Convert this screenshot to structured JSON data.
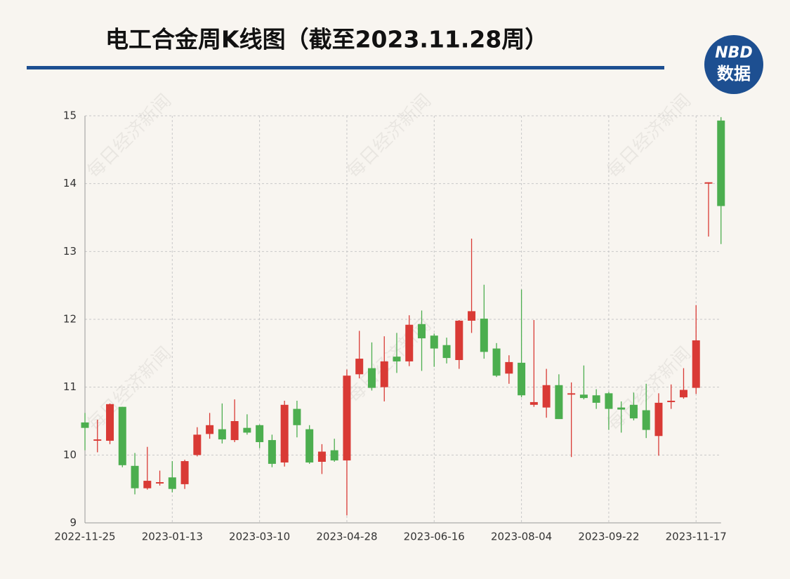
{
  "chart_data": {
    "type": "candlestick",
    "title": "电工合金周K线图（截至2023.11.28周）",
    "logo": {
      "top": "NBD",
      "bottom": "数据"
    },
    "watermark": "每日经济新闻",
    "categories": [
      "2022-11-25",
      null,
      null,
      null,
      null,
      null,
      null,
      "2023-01-13",
      null,
      null,
      null,
      null,
      null,
      null,
      "2023-03-10",
      null,
      null,
      null,
      null,
      null,
      null,
      "2023-04-28",
      null,
      null,
      null,
      null,
      null,
      null,
      "2023-06-16",
      null,
      null,
      null,
      null,
      null,
      null,
      "2023-08-04",
      null,
      null,
      null,
      null,
      null,
      null,
      "2023-09-22",
      null,
      null,
      null,
      null,
      null,
      null,
      "2023-11-17",
      null,
      null
    ],
    "open": [
      10.48,
      10.21,
      10.21,
      10.71,
      9.84,
      9.51,
      9.58,
      9.67,
      9.57,
      10.0,
      10.31,
      10.38,
      10.22,
      10.4,
      10.44,
      10.22,
      9.89,
      10.68,
      10.38,
      9.9,
      10.07,
      9.92,
      11.19,
      11.28,
      11.0,
      11.45,
      11.38,
      11.93,
      11.76,
      11.62,
      11.4,
      11.98,
      12.01,
      11.57,
      11.2,
      11.36,
      10.74,
      10.7,
      11.03,
      10.89,
      10.89,
      10.88,
      10.91,
      10.7,
      10.74,
      10.66,
      10.28,
      10.78,
      10.85,
      10.99,
      14.0,
      14.93
    ],
    "high": [
      10.62,
      10.52,
      10.76,
      10.71,
      10.03,
      10.12,
      9.77,
      9.91,
      9.93,
      10.41,
      10.62,
      10.76,
      10.82,
      10.6,
      10.45,
      10.3,
      10.8,
      10.8,
      10.44,
      10.16,
      10.24,
      11.26,
      11.83,
      11.66,
      11.75,
      11.8,
      12.06,
      12.13,
      11.79,
      11.73,
      11.99,
      13.19,
      12.51,
      11.65,
      11.47,
      12.44,
      11.99,
      11.27,
      11.19,
      11.07,
      11.32,
      10.97,
      10.93,
      10.79,
      10.92,
      11.05,
      10.91,
      11.04,
      11.28,
      12.21,
      14.02,
      14.98
    ],
    "low": [
      10.07,
      10.04,
      10.16,
      9.82,
      9.42,
      9.49,
      9.55,
      9.45,
      9.5,
      9.98,
      10.24,
      10.17,
      10.19,
      10.3,
      10.1,
      9.82,
      9.83,
      10.26,
      9.87,
      9.72,
      9.9,
      9.11,
      11.13,
      10.95,
      10.79,
      11.21,
      11.31,
      11.24,
      11.3,
      11.35,
      11.27,
      11.8,
      11.42,
      11.15,
      11.05,
      10.85,
      10.71,
      10.55,
      10.53,
      9.97,
      10.82,
      10.68,
      10.37,
      10.33,
      10.51,
      10.25,
      9.99,
      10.68,
      10.83,
      10.9,
      13.22,
      13.11
    ],
    "close": [
      10.4,
      10.23,
      10.75,
      9.85,
      9.51,
      9.62,
      9.6,
      9.5,
      9.91,
      10.3,
      10.44,
      10.23,
      10.5,
      10.33,
      10.19,
      9.87,
      10.74,
      10.44,
      9.89,
      10.05,
      9.92,
      11.17,
      11.42,
      10.99,
      11.38,
      11.38,
      11.92,
      11.72,
      11.57,
      11.43,
      11.98,
      12.12,
      11.52,
      11.17,
      11.37,
      10.88,
      10.78,
      11.03,
      10.53,
      10.91,
      10.84,
      10.77,
      10.68,
      10.67,
      10.54,
      10.37,
      10.77,
      10.8,
      10.96,
      11.69,
      14.02,
      13.67
    ],
    "up_color": "#d93a35",
    "down_color": "#4cae4f",
    "ylim": [
      9,
      15
    ],
    "yticks": [
      9,
      10,
      11,
      12,
      13,
      14,
      15
    ],
    "grid": true
  }
}
